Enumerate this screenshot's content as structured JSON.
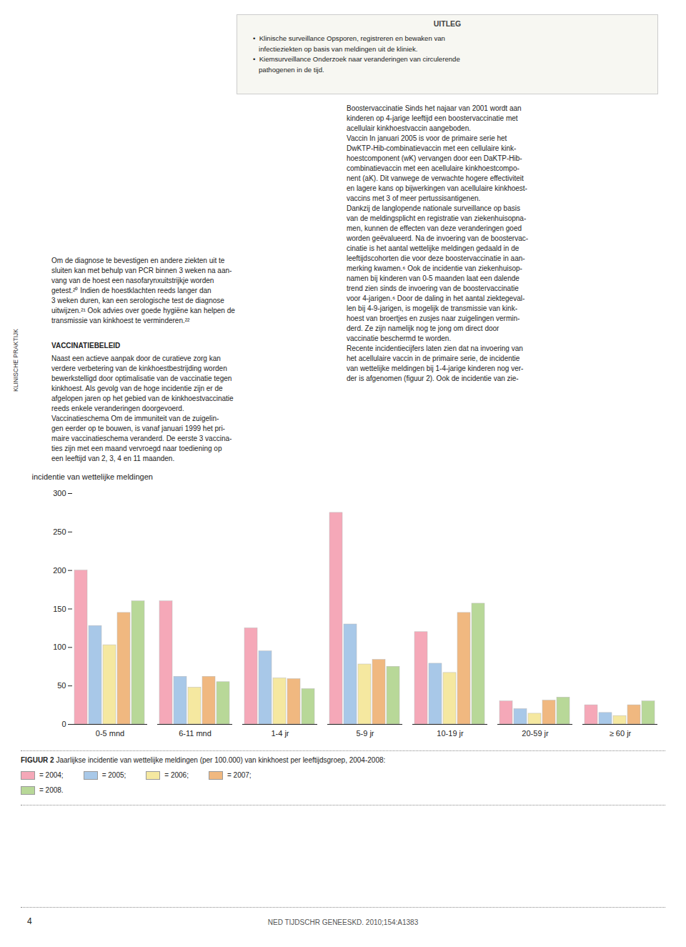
{
  "chart_data": {
    "type": "bar",
    "title": "FIGUUR 2",
    "subtitle": "Jaarlijkse incidentie van wettelijke meldingen (per 100.000) van kinkhoest per leeftijdsgroep, 2004-2008:",
    "ylabel": "incidentie van wettelijke meldingen",
    "categories": [
      "0-5 mnd",
      "6-11 mnd",
      "1-4 jr",
      "5-9 jr",
      "10-19 jr",
      "20-59 jr",
      "≥ 60 jr"
    ],
    "series": [
      {
        "name": "= 2004;",
        "color": "#f5a8b8",
        "values": [
          200,
          160,
          125,
          275,
          120,
          30,
          25
        ]
      },
      {
        "name": "= 2005;",
        "color": "#a8c8e8",
        "values": [
          128,
          62,
          95,
          130,
          79,
          20,
          15
        ]
      },
      {
        "name": "= 2006;",
        "color": "#f5e8a0",
        "values": [
          103,
          48,
          60,
          78,
          67,
          14,
          11
        ]
      },
      {
        "name": "= 2007;",
        "color": "#f0b880",
        "values": [
          145,
          62,
          59,
          84,
          145,
          31,
          25
        ]
      },
      {
        "name": "= 2008.",
        "color": "#b8d898",
        "values": [
          160,
          55,
          46,
          75,
          157,
          35,
          30
        ]
      }
    ],
    "ylim": [
      0,
      300
    ],
    "yticks": [
      0,
      50,
      100,
      150,
      200,
      250,
      300
    ],
    "grid": false,
    "legend": "bottom",
    "annotations": [
      "UITLEG",
      "•  Klinische surveillance Opsporen, registreren en bewaken van\n   infectieziekten op basis van meldingen uit de kliniek.\n•  Kiemsurveillance Onderzoek naar veranderingen van circulerende\n   pathogenen in de tijd.",
      "Boostervaccinatie Sinds het najaar van 2001 wordt aan\nkinderen op 4-jarige leeftijd een boostervaccinatie met\nacellulair kinkhoestvaccin aangeboden.\nVaccin In januari 2005 is voor de primaire serie het\nDwKTP-Hib-combinatievaccin met een cellulaire kink-\nhoestcomponent (wK) vervangen door een DaKTP-Hib-\ncombinatievaccin met een acellulaire kinkhoestcompo-\nnent (aK). Dit vanwege de verwachte hogere effectiviteit\nen lagere kans op bijwerkingen van acellulaire kinkhoest-\nvaccins met 3 of meer pertussisantigenen.\nDankzij de langlopende nationale surveillance op basis\nvan de meldingsplicht en registratie van ziekenhuisopna-\nmen, kunnen de effecten van deze veranderingen goed\nworden geëvalueerd. Na de invoering van de boostervac-\ncinatie is het aantal wettelijke meldingen gedaald in de\nleeftijdscohorten die voor deze boostervaccinatie in aan-\nmerking kwamen.⁶ Ook de incidentie van ziekenhuisop-\nnamen bij kinderen van 0-5 maanden laat een dalende\ntrend zien sinds de invoering van de boostervaccinatie\nvoor 4-jarigen.⁶ Door de daling in het aantal ziektegeval-\nlen bij 4-9-jarigen, is mogelijk de transmissie van kink-\nhoest van broertjes en zusjes naar zuigelingen vermin-\nderd. Ze zijn namelijk nog te jong om direct door\nvaccinatie beschermd te worden.\nRecente incidentiecijfers laten zien dat na invoering van\nhet acellulaire vaccin in de primaire serie, de incidentie\nvan wettelijke meldingen bij 1-4-jarige kinderen nog ver-\nder is afgenomen (figuur 2). Ook de incidentie van zie-",
      "Om de diagnose te bevestigen en andere ziekten uit te\nsluiten kan met behulp van PCR binnen 3 weken na aan-\nvang van de hoest een nasofarynxuitstrijkje worden\ngetest.²⁰ Indien de hoestklachten reeds langer dan\n3 weken duren, kan een serologische test de diagnose\nuitwijzen.²¹ Ook advies over goede hygiëne kan helpen de\ntransmissie van kinkhoest te verminderen.²²",
      "VACCINATIEBELEID",
      "Naast een actieve aanpak door de curatieve zorg kan\nverdere verbetering van de kinkhoestbestrijding worden\nbewerkstelligd door optimalisatie van de vaccinatie tegen\nkinkhoest. Als gevolg van de hoge incidentie zijn er de\nafgelopen jaren op het gebied van de kinkhoestvaccinatie\nreeds enkele veranderingen doorgevoerd.\nVaccinatieschema Om de immuniteit van de zuigelin-\ngen eerder op te bouwen, is vanaf januari 1999 het pri-\nmaire vaccinatieschema veranderd. De eerste 3 vaccina-\nties zijn met een maand vervroegd naar toediening op\neen leeftijd van 2, 3, 4 en 11 maanden.",
      "KLINISCHE PRAKTIJK",
      "4",
      "NED TIJDSCHR GENEESKD. 2010;154:A1383"
    ]
  }
}
